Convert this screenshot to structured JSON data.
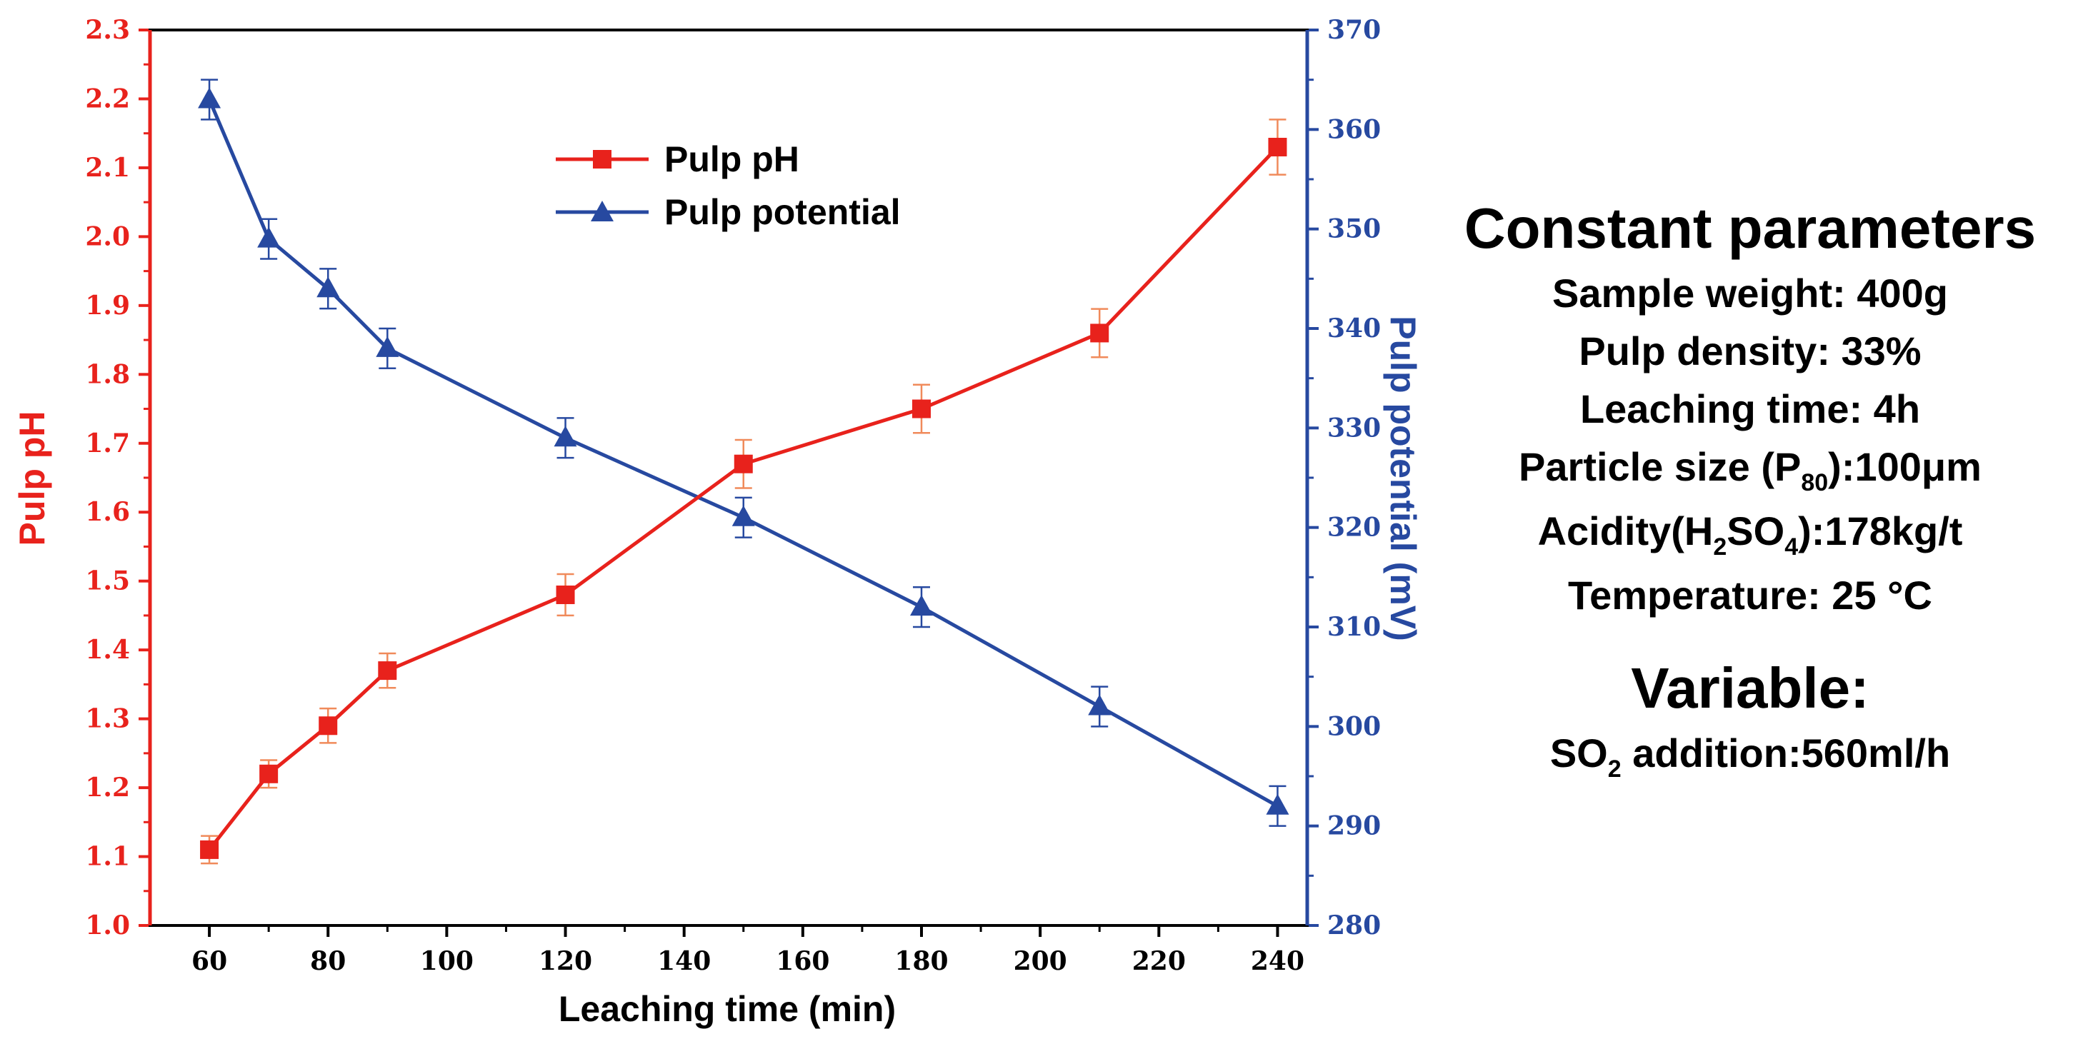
{
  "chart_data": {
    "type": "line",
    "xlabel": "Leaching time  (min)",
    "ylabel_left": "Pulp pH",
    "ylabel_right": "Pulp potential  (mV)",
    "xlim": [
      50,
      245
    ],
    "x_ticks": [
      60,
      80,
      100,
      120,
      140,
      160,
      180,
      200,
      220,
      240
    ],
    "ylim_left": [
      1.0,
      2.3
    ],
    "y_ticks_left": [
      "1.0",
      "1.1",
      "1.2",
      "1.3",
      "1.4",
      "1.5",
      "1.6",
      "1.7",
      "1.8",
      "1.9",
      "2.0",
      "2.1",
      "2.2",
      "2.3"
    ],
    "ylim_right": [
      280,
      370
    ],
    "y_ticks_right": [
      "280",
      "290",
      "300",
      "310",
      "320",
      "330",
      "340",
      "350",
      "360",
      "370"
    ],
    "grid": false,
    "legend_position": "top-center",
    "colors": {
      "ph": "#e8221c",
      "potential": "#2749a0"
    },
    "series": [
      {
        "name": "Pulp pH",
        "axis": "left",
        "marker": "square",
        "x": [
          60,
          70,
          80,
          90,
          120,
          150,
          180,
          210,
          240
        ],
        "y": [
          1.11,
          1.22,
          1.29,
          1.37,
          1.48,
          1.67,
          1.75,
          1.86,
          2.13
        ],
        "error": [
          0.02,
          0.02,
          0.025,
          0.025,
          0.03,
          0.035,
          0.035,
          0.035,
          0.04
        ]
      },
      {
        "name": "Pulp potential",
        "axis": "right",
        "marker": "triangle",
        "x": [
          60,
          70,
          80,
          90,
          120,
          150,
          180,
          210,
          240
        ],
        "y": [
          363,
          349,
          344,
          338,
          329,
          321,
          312,
          302,
          292
        ],
        "error": [
          2,
          2,
          2,
          2,
          2,
          2,
          2,
          2,
          2
        ]
      }
    ]
  },
  "side_panel": {
    "heading": "Constant parameters",
    "sample_weight": "Sample weight: 400g",
    "pulp_density": "Pulp density: 33%",
    "leaching_time": "Leaching time: 4h",
    "particle_size_prefix": "Particle size (P",
    "particle_size_sub": "80",
    "particle_size_suffix": "):100μm",
    "acidity_prefix": "Acidity(H",
    "acidity_sub1": "2",
    "acidity_mid": "SO",
    "acidity_sub2": "4",
    "acidity_suffix": "):178kg/t",
    "temperature": "Temperature: 25 °C",
    "variable_heading": "Variable:",
    "so2_prefix": "SO",
    "so2_sub": "2",
    "so2_suffix": " addition:560ml/h"
  }
}
